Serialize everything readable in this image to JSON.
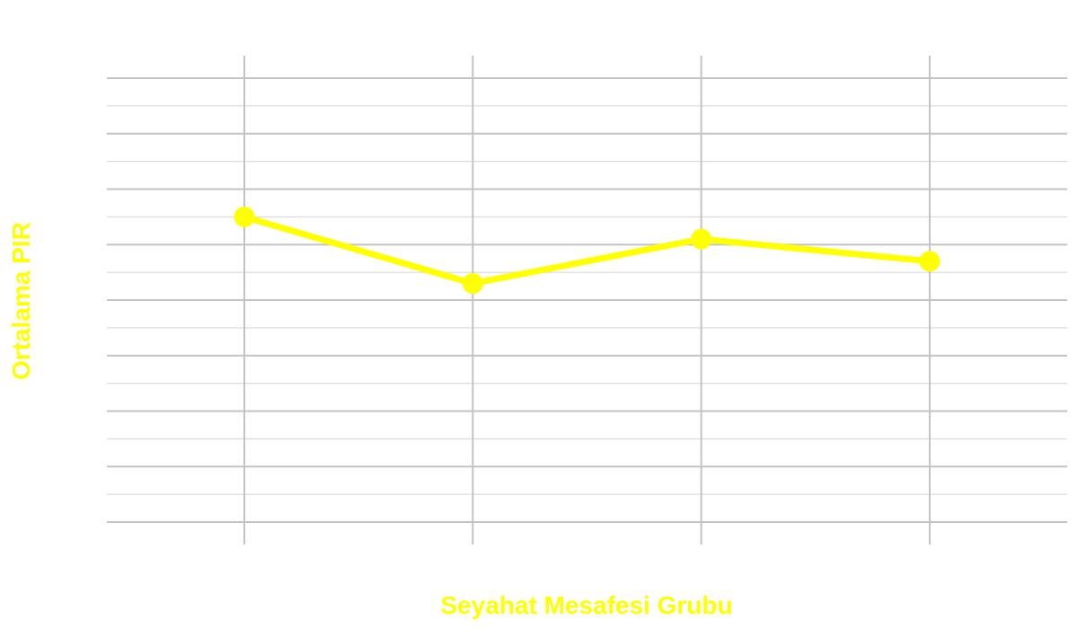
{
  "chart_data": {
    "type": "line",
    "title": "",
    "xlabel": "Seyahat Mesafesi Grubu",
    "ylabel": "Ortalama PIR",
    "categories": [
      "",
      "",
      "",
      ""
    ],
    "series": [
      {
        "values": [
          0.55,
          0.43,
          0.51,
          0.47
        ]
      }
    ],
    "ylim": [
      0,
      0.8
    ],
    "grid": true,
    "legend": "none",
    "colors": {
      "series": "#ffff00",
      "axis_titles": "#ffff00",
      "grid_major": "#c3c3c3",
      "grid_minor": "#dcdcdc",
      "background": "#ffffff"
    }
  }
}
